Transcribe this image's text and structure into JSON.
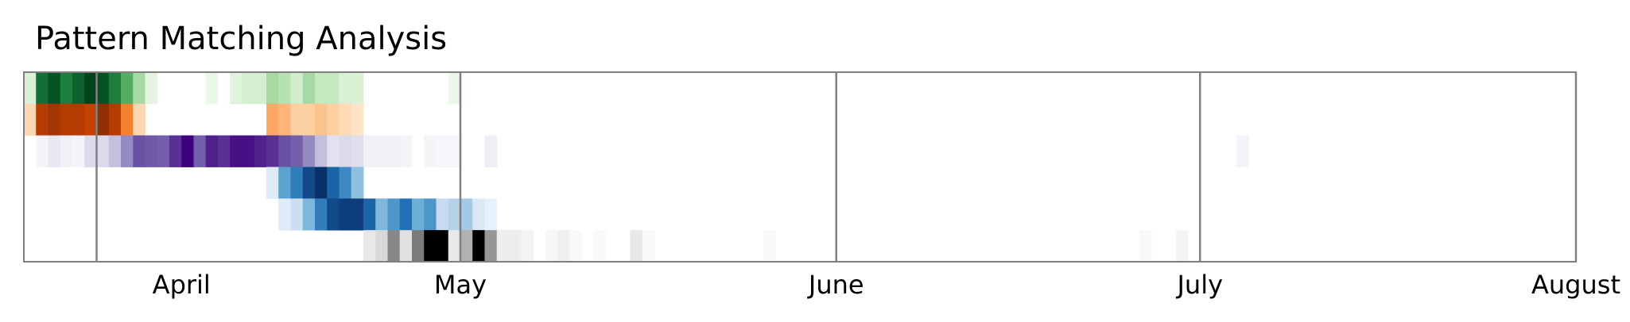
{
  "chart_data": {
    "type": "heatmap",
    "title": "Pattern Matching Analysis",
    "xlabel": "",
    "ylabel": "",
    "x_axis": "date",
    "xlim": [
      "2024-03-26",
      "2024-08-01"
    ],
    "month_boundaries": [
      "2024-04-01",
      "2024-05-01",
      "2024-06-01",
      "2024-07-01",
      "2024-08-01"
    ],
    "tick_labels": [
      {
        "label": "April",
        "date": "2024-04-08"
      },
      {
        "label": "May",
        "date": "2024-05-01"
      },
      {
        "label": "June",
        "date": "2024-06-01"
      },
      {
        "label": "July",
        "date": "2024-07-01"
      },
      {
        "label": "August",
        "date": "2024-08-01"
      }
    ],
    "grid": false,
    "rows": [
      {
        "colormap": [
          "#f7fcf5",
          "#c7e9c0",
          "#74c476",
          "#238b45",
          "#00441b"
        ],
        "cells": [
          {
            "date": "2024-03-26",
            "v": 0.15
          },
          {
            "date": "2024-03-27",
            "v": 0.85
          },
          {
            "date": "2024-03-28",
            "v": 0.95
          },
          {
            "date": "2024-03-29",
            "v": 0.8
          },
          {
            "date": "2024-03-30",
            "v": 0.9
          },
          {
            "date": "2024-03-31",
            "v": 1.0
          },
          {
            "date": "2024-04-01",
            "v": 0.95
          },
          {
            "date": "2024-04-02",
            "v": 0.8
          },
          {
            "date": "2024-04-03",
            "v": 0.6
          },
          {
            "date": "2024-04-04",
            "v": 0.35
          },
          {
            "date": "2024-04-05",
            "v": 0.1
          },
          {
            "date": "2024-04-10",
            "v": 0.06
          },
          {
            "date": "2024-04-12",
            "v": 0.12
          },
          {
            "date": "2024-04-13",
            "v": 0.18
          },
          {
            "date": "2024-04-14",
            "v": 0.18
          },
          {
            "date": "2024-04-15",
            "v": 0.35
          },
          {
            "date": "2024-04-16",
            "v": 0.3
          },
          {
            "date": "2024-04-17",
            "v": 0.2
          },
          {
            "date": "2024-04-18",
            "v": 0.35
          },
          {
            "date": "2024-04-19",
            "v": 0.25
          },
          {
            "date": "2024-04-20",
            "v": 0.25
          },
          {
            "date": "2024-04-21",
            "v": 0.15
          },
          {
            "date": "2024-04-22",
            "v": 0.15
          },
          {
            "date": "2024-04-30",
            "v": 0.06
          }
        ]
      },
      {
        "colormap": [
          "#fff5eb",
          "#fdd0a2",
          "#fd8d3c",
          "#d94801",
          "#7f2704"
        ],
        "cells": [
          {
            "date": "2024-03-26",
            "v": 0.2
          },
          {
            "date": "2024-03-27",
            "v": 0.85
          },
          {
            "date": "2024-03-28",
            "v": 0.9
          },
          {
            "date": "2024-03-29",
            "v": 0.85
          },
          {
            "date": "2024-03-30",
            "v": 0.85
          },
          {
            "date": "2024-03-31",
            "v": 0.8
          },
          {
            "date": "2024-04-01",
            "v": 0.95
          },
          {
            "date": "2024-04-02",
            "v": 0.85
          },
          {
            "date": "2024-04-03",
            "v": 0.55
          },
          {
            "date": "2024-04-04",
            "v": 0.2
          },
          {
            "date": "2024-04-15",
            "v": 0.4
          },
          {
            "date": "2024-04-16",
            "v": 0.35
          },
          {
            "date": "2024-04-17",
            "v": 0.25
          },
          {
            "date": "2024-04-18",
            "v": 0.25
          },
          {
            "date": "2024-04-19",
            "v": 0.3
          },
          {
            "date": "2024-04-20",
            "v": 0.25
          },
          {
            "date": "2024-04-21",
            "v": 0.18
          },
          {
            "date": "2024-04-22",
            "v": 0.12
          }
        ]
      },
      {
        "colormap": [
          "#fcfbfd",
          "#dadaeb",
          "#9e9ac8",
          "#6a51a3",
          "#3f007d"
        ],
        "cells": [
          {
            "date": "2024-03-27",
            "v": 0.05
          },
          {
            "date": "2024-03-28",
            "v": 0.15
          },
          {
            "date": "2024-03-29",
            "v": 0.08
          },
          {
            "date": "2024-03-30",
            "v": 0.05
          },
          {
            "date": "2024-03-31",
            "v": 0.25
          },
          {
            "date": "2024-04-01",
            "v": 0.25
          },
          {
            "date": "2024-04-02",
            "v": 0.35
          },
          {
            "date": "2024-04-03",
            "v": 0.55
          },
          {
            "date": "2024-04-04",
            "v": 0.75
          },
          {
            "date": "2024-04-05",
            "v": 0.72
          },
          {
            "date": "2024-04-06",
            "v": 0.7
          },
          {
            "date": "2024-04-07",
            "v": 0.85
          },
          {
            "date": "2024-04-08",
            "v": 1.0
          },
          {
            "date": "2024-04-09",
            "v": 0.7
          },
          {
            "date": "2024-04-10",
            "v": 0.9
          },
          {
            "date": "2024-04-11",
            "v": 0.85
          },
          {
            "date": "2024-04-12",
            "v": 0.95
          },
          {
            "date": "2024-04-13",
            "v": 0.95
          },
          {
            "date": "2024-04-14",
            "v": 0.9
          },
          {
            "date": "2024-04-15",
            "v": 0.85
          },
          {
            "date": "2024-04-16",
            "v": 0.75
          },
          {
            "date": "2024-04-17",
            "v": 0.7
          },
          {
            "date": "2024-04-18",
            "v": 0.55
          },
          {
            "date": "2024-04-19",
            "v": 0.35
          },
          {
            "date": "2024-04-20",
            "v": 0.2
          },
          {
            "date": "2024-04-21",
            "v": 0.25
          },
          {
            "date": "2024-04-22",
            "v": 0.22
          },
          {
            "date": "2024-04-23",
            "v": 0.08
          },
          {
            "date": "2024-04-24",
            "v": 0.08
          },
          {
            "date": "2024-04-25",
            "v": 0.08
          },
          {
            "date": "2024-04-26",
            "v": 0.05
          },
          {
            "date": "2024-04-28",
            "v": 0.05
          },
          {
            "date": "2024-04-29",
            "v": 0.04
          },
          {
            "date": "2024-04-30",
            "v": 0.04
          },
          {
            "date": "2024-05-03",
            "v": 0.1
          },
          {
            "date": "2024-07-04",
            "v": 0.06
          }
        ]
      },
      {
        "colormap": [
          "#f7fbff",
          "#c6dbef",
          "#6baed6",
          "#2171b5",
          "#08306b"
        ],
        "cells": [
          {
            "date": "2024-04-15",
            "v": 0.12
          },
          {
            "date": "2024-04-16",
            "v": 0.55
          },
          {
            "date": "2024-04-17",
            "v": 0.7
          },
          {
            "date": "2024-04-18",
            "v": 0.9
          },
          {
            "date": "2024-04-19",
            "v": 1.0
          },
          {
            "date": "2024-04-20",
            "v": 0.8
          },
          {
            "date": "2024-04-21",
            "v": 0.65
          },
          {
            "date": "2024-04-22",
            "v": 0.4
          }
        ]
      },
      {
        "colormap": [
          "#f7fbff",
          "#c6dbef",
          "#6baed6",
          "#2171b5",
          "#08306b"
        ],
        "cells": [
          {
            "date": "2024-04-16",
            "v": 0.12
          },
          {
            "date": "2024-04-17",
            "v": 0.22
          },
          {
            "date": "2024-04-18",
            "v": 0.45
          },
          {
            "date": "2024-04-19",
            "v": 0.7
          },
          {
            "date": "2024-04-20",
            "v": 0.9
          },
          {
            "date": "2024-04-21",
            "v": 0.95
          },
          {
            "date": "2024-04-22",
            "v": 0.95
          },
          {
            "date": "2024-04-23",
            "v": 0.8
          },
          {
            "date": "2024-04-24",
            "v": 0.45
          },
          {
            "date": "2024-04-25",
            "v": 0.6
          },
          {
            "date": "2024-04-26",
            "v": 0.75
          },
          {
            "date": "2024-04-27",
            "v": 0.5
          },
          {
            "date": "2024-04-28",
            "v": 0.6
          },
          {
            "date": "2024-04-29",
            "v": 0.25
          },
          {
            "date": "2024-04-30",
            "v": 0.3
          },
          {
            "date": "2024-05-01",
            "v": 0.35
          },
          {
            "date": "2024-05-02",
            "v": 0.15
          },
          {
            "date": "2024-05-03",
            "v": 0.08
          }
        ]
      },
      {
        "colormap": [
          "#ffffff",
          "#d9d9d9",
          "#969696",
          "#525252",
          "#000000"
        ],
        "cells": [
          {
            "date": "2024-04-23",
            "v": 0.15
          },
          {
            "date": "2024-04-24",
            "v": 0.25
          },
          {
            "date": "2024-04-25",
            "v": 0.55
          },
          {
            "date": "2024-04-26",
            "v": 0.2
          },
          {
            "date": "2024-04-27",
            "v": 0.6
          },
          {
            "date": "2024-04-28",
            "v": 1.0
          },
          {
            "date": "2024-04-29",
            "v": 1.0
          },
          {
            "date": "2024-04-30",
            "v": 0.15
          },
          {
            "date": "2024-05-01",
            "v": 0.4
          },
          {
            "date": "2024-05-02",
            "v": 1.0
          },
          {
            "date": "2024-05-03",
            "v": 0.5
          },
          {
            "date": "2024-05-04",
            "v": 0.12
          },
          {
            "date": "2024-05-05",
            "v": 0.12
          },
          {
            "date": "2024-05-06",
            "v": 0.08
          },
          {
            "date": "2024-05-08",
            "v": 0.05
          },
          {
            "date": "2024-05-09",
            "v": 0.1
          },
          {
            "date": "2024-05-10",
            "v": 0.04
          },
          {
            "date": "2024-05-12",
            "v": 0.03
          },
          {
            "date": "2024-05-15",
            "v": 0.15
          },
          {
            "date": "2024-05-16",
            "v": 0.04
          },
          {
            "date": "2024-05-26",
            "v": 0.04
          },
          {
            "date": "2024-06-26",
            "v": 0.04
          },
          {
            "date": "2024-06-29",
            "v": 0.07
          }
        ]
      }
    ]
  }
}
